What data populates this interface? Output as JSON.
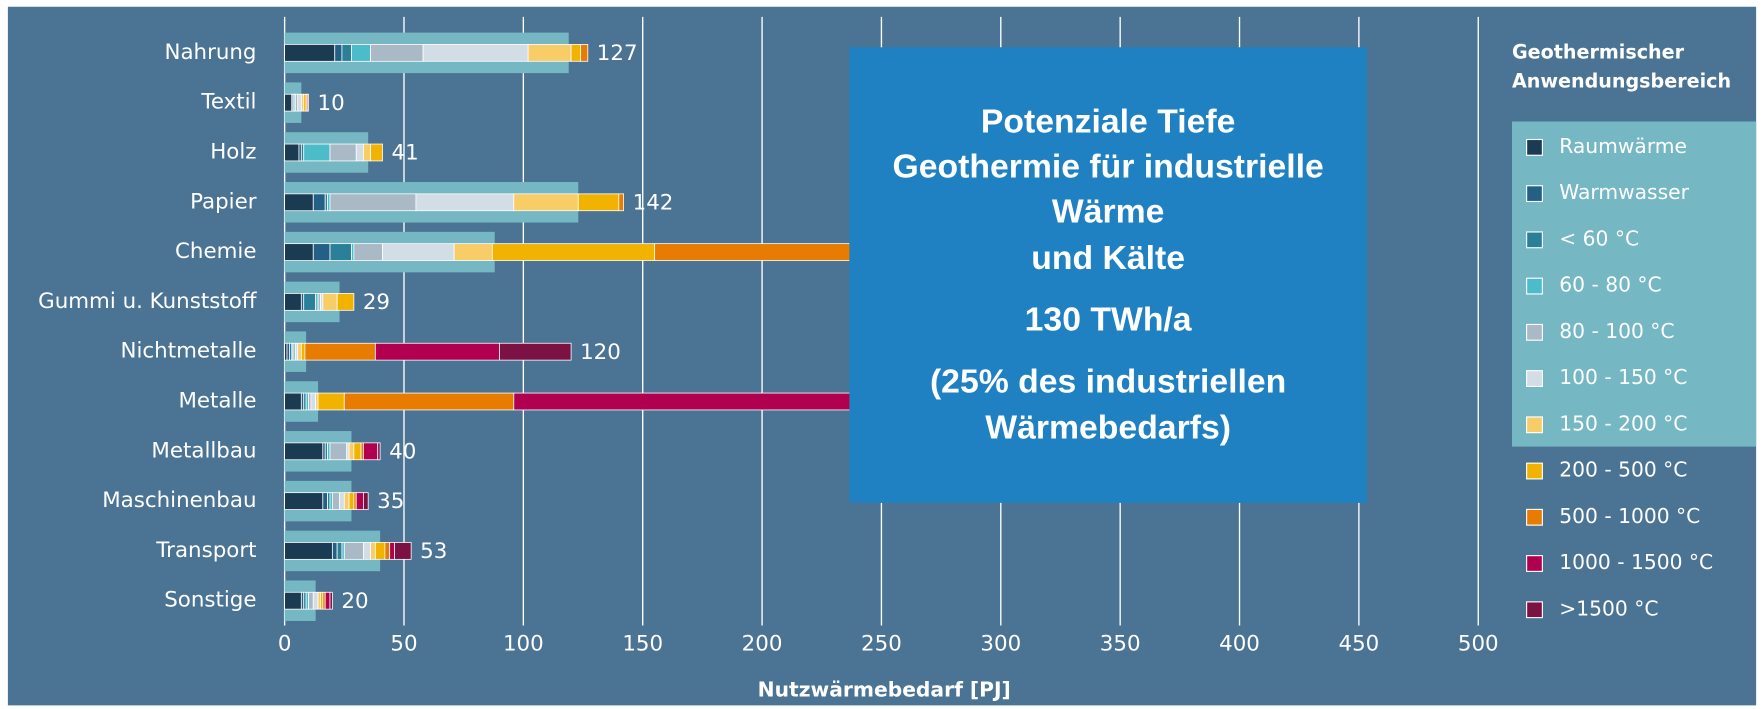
{
  "chart_data": {
    "type": "stacked-barh",
    "categories": [
      "Nahrung",
      "Textil",
      "Holz",
      "Papier",
      "Chemie",
      "Gummi u. Kunststoff",
      "Nichtmetalle",
      "Metalle",
      "Metallbau",
      "Maschinenbau",
      "Transport",
      "Sonstige"
    ],
    "series": [
      {
        "name": "Raumwärme",
        "color": "#1b3b52",
        "values": [
          21,
          3,
          6,
          12,
          12,
          7,
          1,
          7,
          16,
          16,
          20,
          7
        ]
      },
      {
        "name": "Warmwasser",
        "color": "#245f86",
        "values": [
          3,
          0.5,
          1,
          5,
          7,
          1,
          1,
          1,
          1,
          2,
          2,
          1
        ]
      },
      {
        "name": "< 60 °C",
        "color": "#2c7f98",
        "values": [
          4,
          0.5,
          1,
          1,
          9,
          5,
          1,
          1,
          1,
          1,
          2,
          1
        ]
      },
      {
        "name": "60 - 80 °C",
        "color": "#4cbccb",
        "values": [
          8,
          0.5,
          11,
          1,
          1,
          1,
          0.5,
          1,
          1,
          1,
          1,
          1
        ]
      },
      {
        "name": "80 - 100 °C",
        "color": "#a9b9c5",
        "values": [
          22,
          1,
          11,
          36,
          12,
          1,
          1,
          1,
          7,
          3,
          8,
          2
        ]
      },
      {
        "name": "100 - 150 °C",
        "color": "#d2dde5",
        "values": [
          44,
          1.5,
          3,
          41,
          30,
          1,
          1,
          2,
          1,
          2,
          3,
          2
        ]
      },
      {
        "name": "150 - 200 °C",
        "color": "#f8cd68",
        "values": [
          18,
          1,
          3,
          27,
          16,
          6,
          1.5,
          1,
          2,
          2,
          2,
          1
        ]
      },
      {
        "name": "200 - 500 °C",
        "color": "#f2b300",
        "values": [
          4,
          1,
          5,
          17,
          68,
          7,
          1.5,
          11,
          3,
          2,
          4,
          1
        ]
      },
      {
        "name": "500 - 1000 °C",
        "color": "#e87c00",
        "values": [
          3,
          0.5,
          0,
          2,
          100,
          0,
          29.5,
          71,
          1,
          1,
          2,
          1
        ]
      },
      {
        "name": "1000 - 1500 °C",
        "color": "#b0004f",
        "values": [
          0,
          0.5,
          0,
          0,
          20,
          0,
          52,
          160,
          6,
          3,
          2,
          2
        ]
      },
      {
        "name": ">1500 °C",
        "color": "#7b1243",
        "values": [
          0,
          0,
          0,
          0,
          5,
          0,
          30,
          10,
          1,
          2,
          7,
          1
        ]
      }
    ],
    "totals": [
      127,
      10,
      41,
      142,
      null,
      29,
      120,
      null,
      40,
      35,
      53,
      20
    ],
    "highlight": {
      "label_lines": [
        "Geothermischer",
        "Anwendungsbereich"
      ],
      "color": "#75b8c3",
      "values": [
        119,
        7,
        35,
        123,
        88,
        23,
        9,
        14,
        28,
        28,
        40,
        13
      ]
    },
    "xlim": [
      0,
      500
    ],
    "xticks": [
      0,
      50,
      100,
      150,
      200,
      250,
      300,
      350,
      400,
      450,
      500
    ],
    "grid": true,
    "x_label": "Nutzwärmebedarf [PJ]",
    "annotation": {
      "color": "#1f81c2",
      "lines": [
        "Potenziale Tiefe",
        "Geothermie für industrielle",
        "Wärme",
        "und Kälte",
        "130 TWh/a",
        "(25% des industriellen",
        "Wärmebedarfs)"
      ]
    }
  }
}
